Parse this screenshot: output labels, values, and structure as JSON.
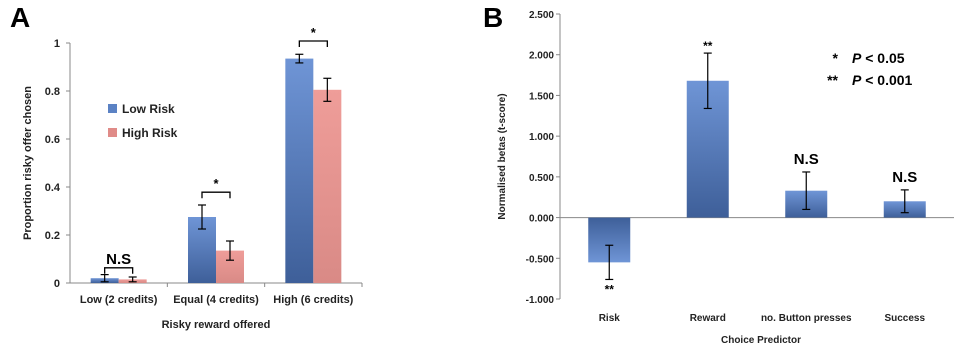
{
  "chart_data": [
    {
      "type": "bar",
      "panel_label": "A",
      "categories": [
        "Low (2 credits)",
        "Equal (4 credits)",
        "High (6 credits)"
      ],
      "series": [
        {
          "name": "Low Risk",
          "values": [
            0.02,
            0.275,
            0.935
          ],
          "err": [
            0.015,
            0.05,
            0.018
          ]
        },
        {
          "name": "High Risk",
          "values": [
            0.015,
            0.135,
            0.805
          ],
          "err": [
            0.01,
            0.04,
            0.048
          ]
        }
      ],
      "xlabel": "Risky reward offered",
      "ylabel": "Proportion risky offer chosen",
      "ylim": [
        0,
        1
      ],
      "yticks": [
        "0",
        "0.2",
        "0.4",
        "0.6",
        "0.8",
        "1"
      ],
      "legend": "upper-left",
      "annotations": [
        "N.S",
        "*",
        "*"
      ],
      "colors": {
        "Low Risk": "#5b82c4",
        "High Risk": "#e08b88"
      }
    },
    {
      "type": "bar",
      "panel_label": "B",
      "categories": [
        "Risk",
        "Reward",
        "no. Button presses",
        "Success"
      ],
      "values": [
        -0.55,
        1.68,
        0.33,
        0.2
      ],
      "err": [
        0.21,
        0.34,
        0.23,
        0.14
      ],
      "xlabel": "Choice Predictor",
      "ylabel": "Normalised betas (t-score)",
      "ylim": [
        -1.0,
        2.5
      ],
      "yticks": [
        "-1.000",
        "-0.500",
        "0.000",
        "0.500",
        "1.000",
        "1.500",
        "2.000",
        "2.500"
      ],
      "bar_annotations": [
        "**",
        "**",
        "N.S",
        "N.S"
      ],
      "significance_key": [
        {
          "stars": "*",
          "label": "P < 0.05"
        },
        {
          "stars": "**",
          "label": "P < 0.001"
        }
      ],
      "colors": {
        "bar": "#5b82c4"
      }
    }
  ]
}
